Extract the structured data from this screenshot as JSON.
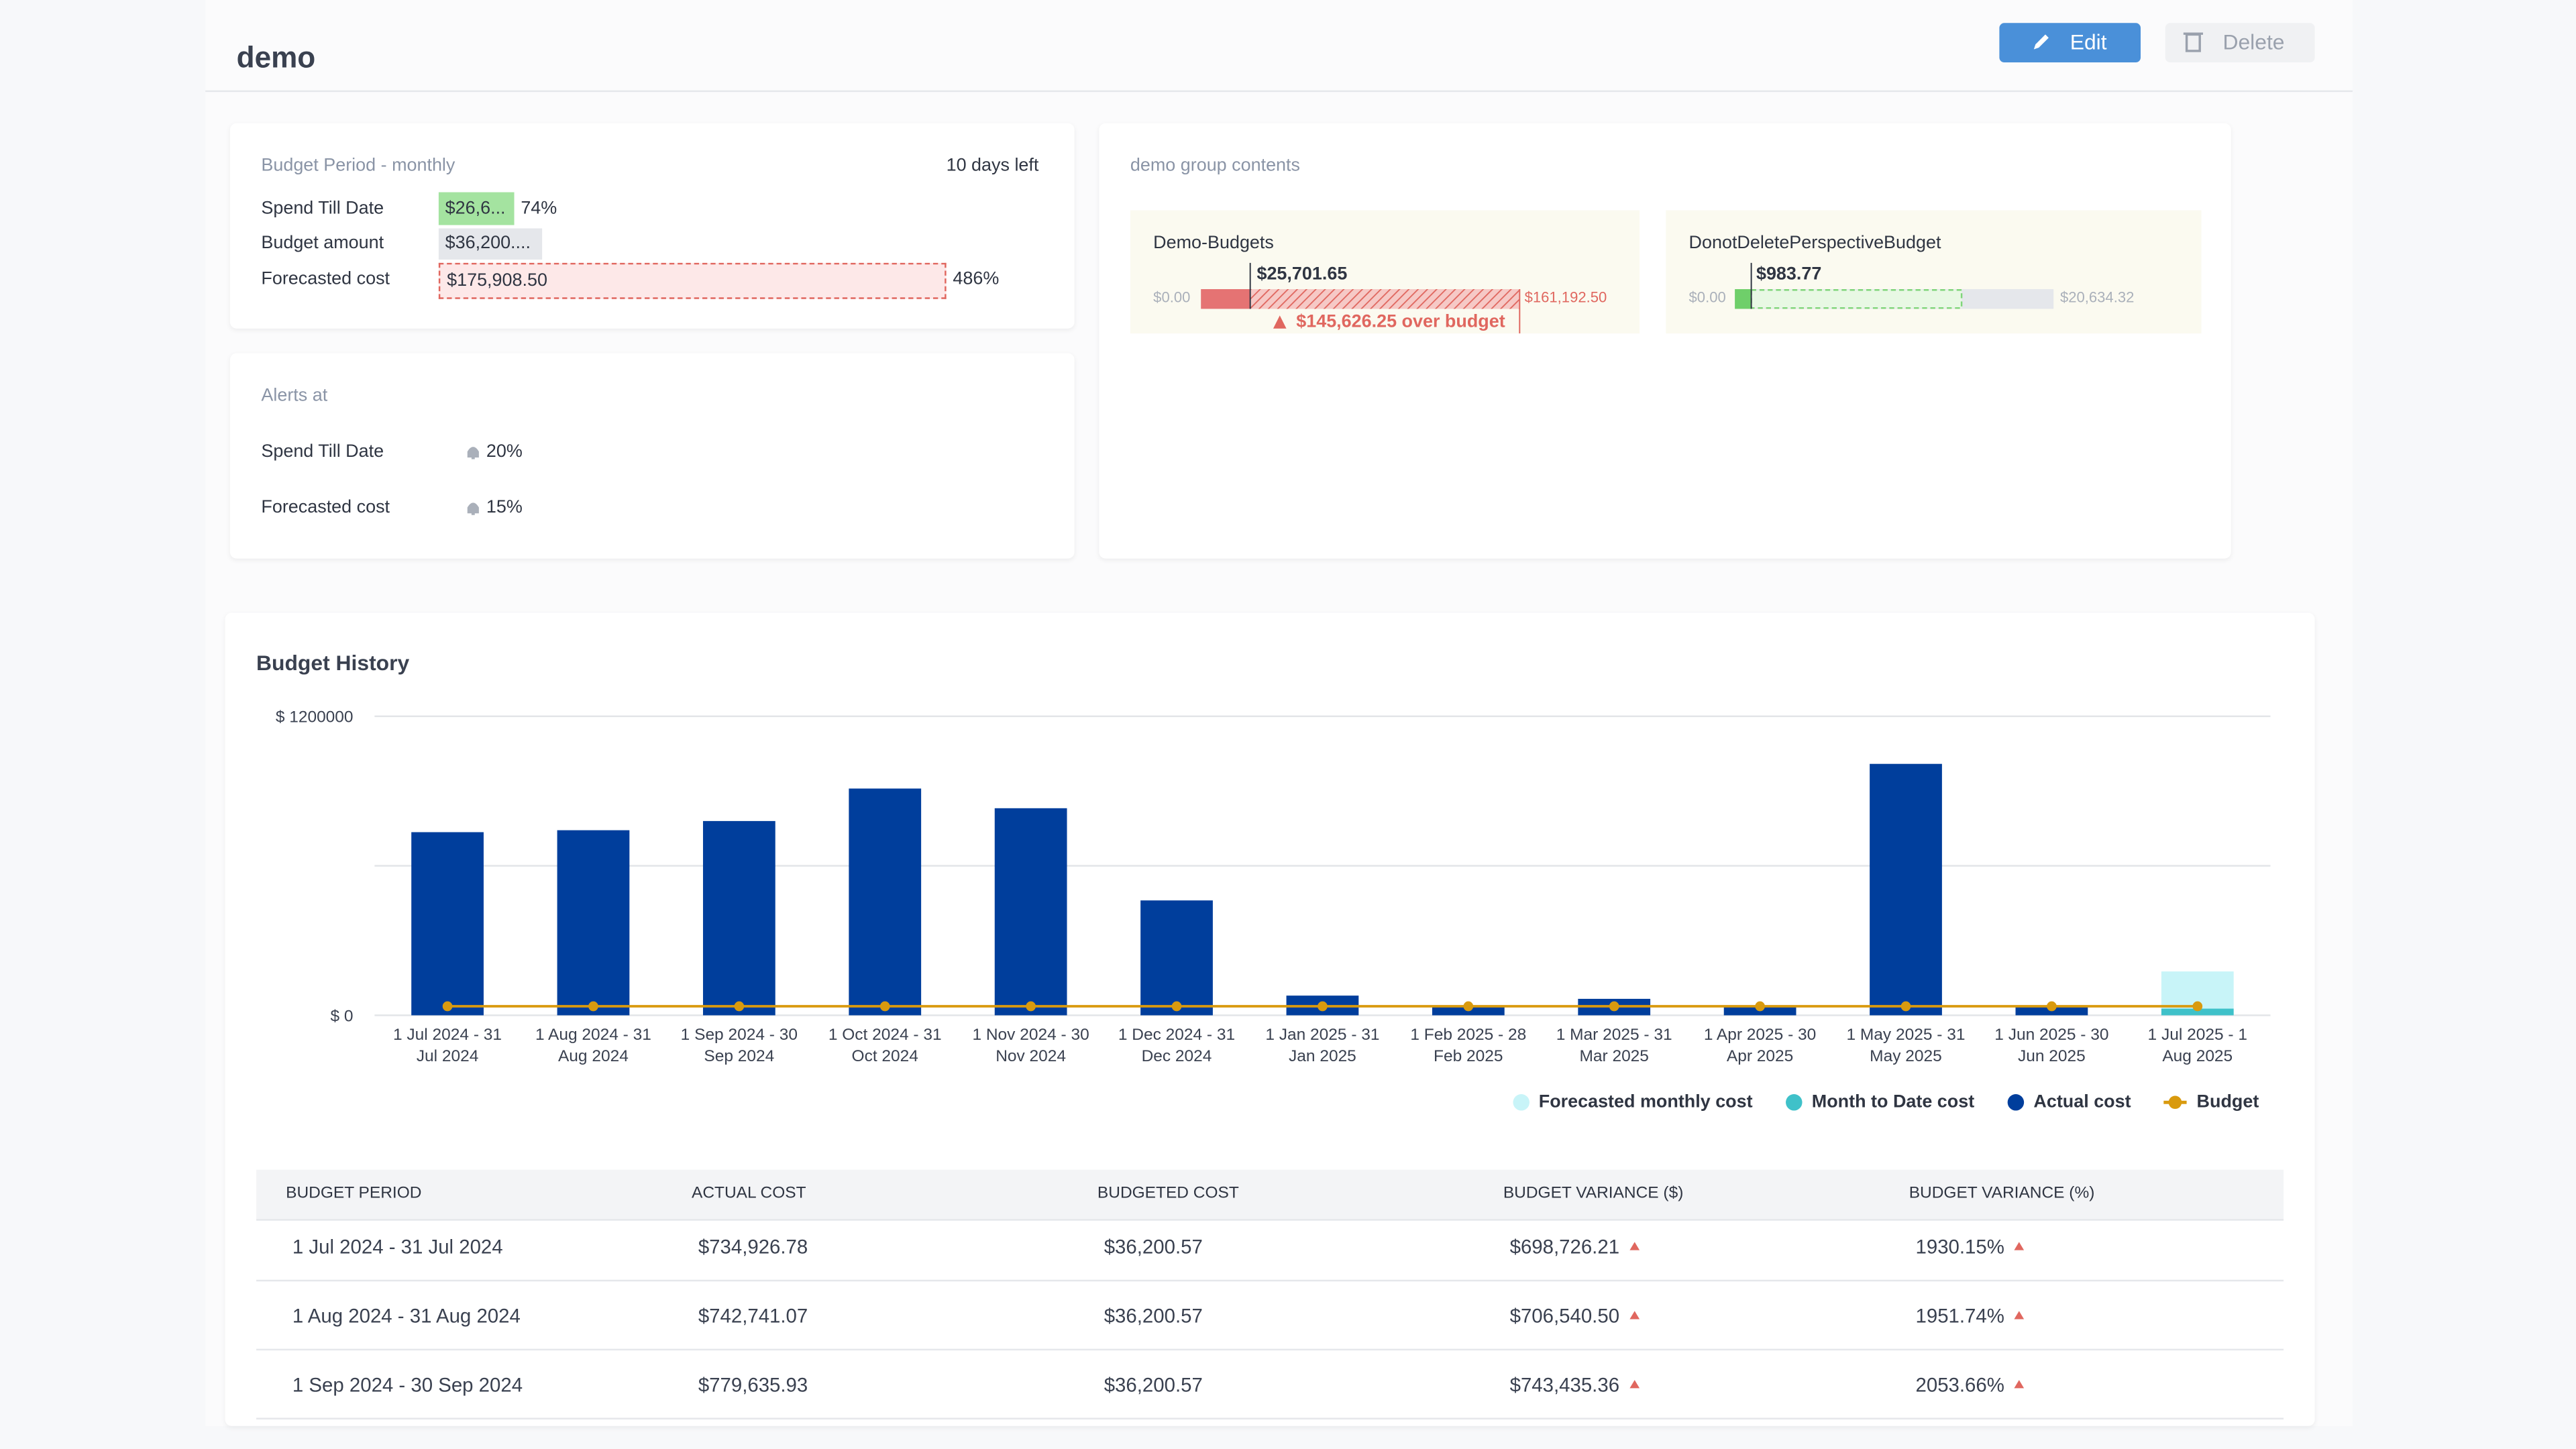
{
  "header": {
    "title": "demo",
    "edit": "Edit",
    "delete": "Delete"
  },
  "period_card": {
    "title": "Budget Period - monthly",
    "days_left": "10 days left",
    "rows": [
      {
        "label": "Spend Till Date",
        "value": "$26,6...",
        "pct": "74%"
      },
      {
        "label": "Budget amount",
        "value": "$36,200...."
      },
      {
        "label": "Forecasted cost",
        "value": "$175,908.50",
        "pct": "486%"
      }
    ]
  },
  "alerts": {
    "title": "Alerts at",
    "rows": [
      {
        "label": "Spend Till Date",
        "value": "20%"
      },
      {
        "label": "Forecasted cost",
        "value": "15%"
      }
    ]
  },
  "group": {
    "title": "demo group contents",
    "items": [
      {
        "name": "Demo-Budgets",
        "spend": "$25,701.65",
        "min": "$0.00",
        "max": "$161,192.50",
        "warning": "$145,626.25 over budget"
      },
      {
        "name": "DonotDeletePerspectiveBudget",
        "spend": "$983.77",
        "min": "$0.00",
        "max": "$20,634.32"
      }
    ]
  },
  "chart_data": {
    "type": "bar",
    "title": "Budget History",
    "categories": [
      "1 Jul 2024 - 31 Jul 2024",
      "1 Aug 2024 - 31 Aug 2024",
      "1 Sep 2024 - 30 Sep 2024",
      "1 Oct 2024 - 31 Oct 2024",
      "1 Nov 2024 - 30 Nov 2024",
      "1 Dec 2024 - 31 Dec 2024",
      "1 Jan 2025 - 31 Jan 2025",
      "1 Feb 2025 - 28 Feb 2025",
      "1 Mar 2025 - 31 Mar 2025",
      "1 Apr 2025 - 30 Apr 2025",
      "1 May 2025 - 31 May 2025",
      "1 Jun 2025 - 30 Jun 2025",
      "1 Jul 2025 - 1 Aug 2025"
    ],
    "series": [
      {
        "name": "Forecasted monthly cost",
        "color": "#c8f4f8",
        "values": [
          null,
          null,
          null,
          null,
          null,
          null,
          null,
          null,
          null,
          null,
          null,
          null,
          175908.5
        ]
      },
      {
        "name": "Month to Date cost",
        "color": "#3fc1c9",
        "values": [
          null,
          null,
          null,
          null,
          null,
          null,
          null,
          null,
          null,
          null,
          null,
          null,
          26685
        ]
      },
      {
        "name": "Actual cost",
        "color": "#003e9c",
        "values": [
          734926.78,
          742741.07,
          779635.93,
          910000,
          831000,
          461000,
          79000,
          40000,
          66000,
          40000,
          1009000,
          40000,
          null
        ]
      },
      {
        "name": "Budget",
        "color": "#d99a0e",
        "type": "line",
        "values": [
          36200.57,
          36200.57,
          36200.57,
          36200.57,
          36200.57,
          36200.57,
          36200.57,
          36200.57,
          36200.57,
          36200.57,
          36200.57,
          36200.57,
          36200.57
        ]
      }
    ],
    "ylim": [
      0,
      1200000
    ],
    "yticks": [
      {
        "value": 0,
        "label": "$ 0"
      },
      {
        "value": 600000,
        "label": null
      },
      {
        "value": 1200000,
        "label": "$ 1200000"
      }
    ],
    "grid": true
  },
  "table": {
    "header": [
      "BUDGET PERIOD",
      "ACTUAL COST",
      "BUDGETED COST",
      "BUDGET VARIANCE ($)",
      "BUDGET VARIANCE (%)"
    ],
    "rows": [
      [
        "1 Jul 2024 - 31 Jul 2024",
        "$734,926.78",
        "$36,200.57",
        "$698,726.21",
        "1930.15%"
      ],
      [
        "1 Aug 2024 - 31 Aug 2024",
        "$742,741.07",
        "$36,200.57",
        "$706,540.50",
        "1951.74%"
      ],
      [
        "1 Sep 2024 - 30 Sep 2024",
        "$779,635.93",
        "$36,200.57",
        "$743,435.36",
        "2053.66%"
      ]
    ]
  }
}
